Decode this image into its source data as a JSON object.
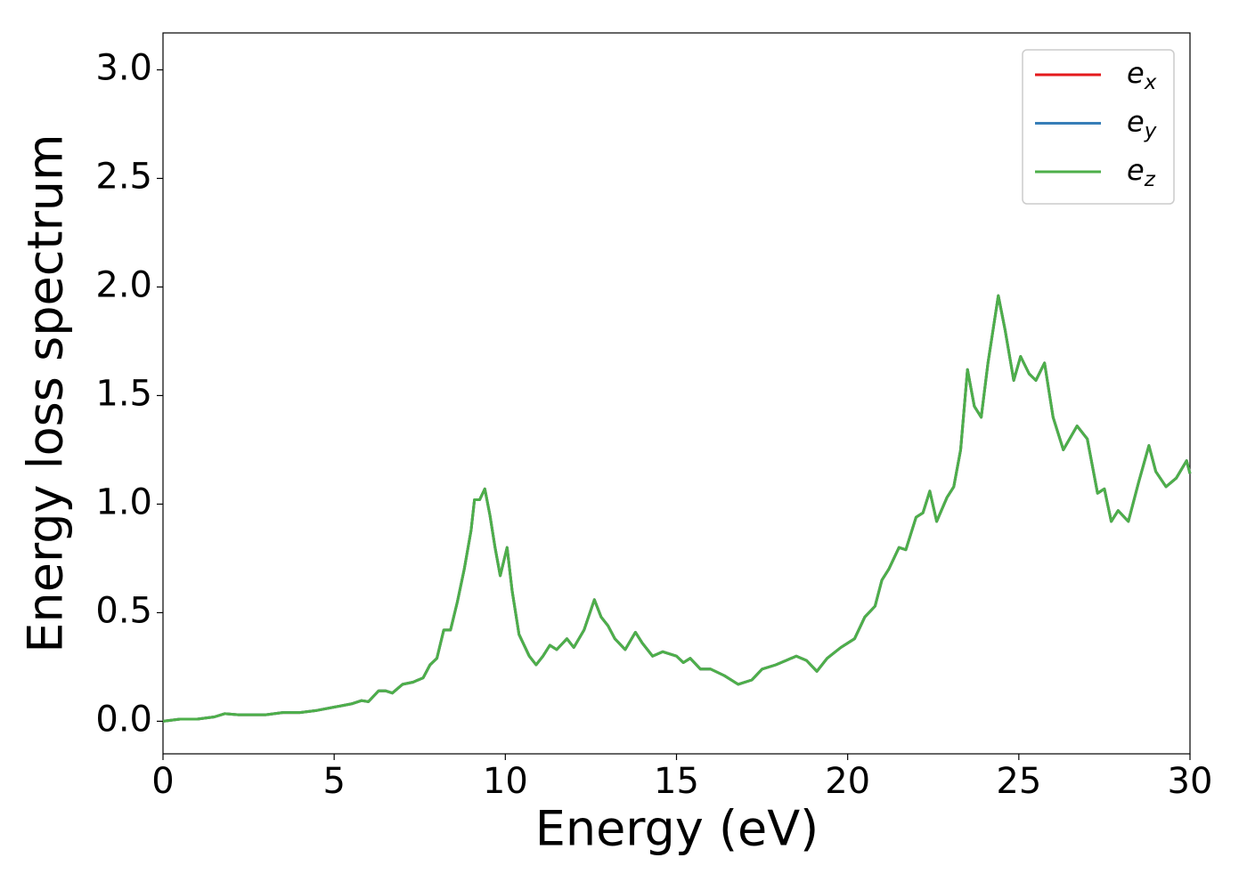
{
  "chart_data": {
    "type": "line",
    "xlabel": "Energy (eV)",
    "ylabel": "Energy loss spectrum",
    "x": [
      0,
      0.5,
      1.0,
      1.5,
      1.8,
      2.2,
      3.0,
      3.5,
      4.0,
      4.5,
      5.0,
      5.5,
      5.8,
      6.0,
      6.3,
      6.5,
      6.7,
      7.0,
      7.3,
      7.6,
      7.8,
      8.0,
      8.2,
      8.4,
      8.6,
      8.8,
      9.0,
      9.1,
      9.25,
      9.4,
      9.55,
      9.7,
      9.85,
      10.05,
      10.2,
      10.4,
      10.7,
      10.9,
      11.1,
      11.3,
      11.5,
      11.8,
      12.0,
      12.3,
      12.6,
      12.8,
      13.0,
      13.2,
      13.5,
      13.8,
      14.0,
      14.3,
      14.6,
      15.0,
      15.2,
      15.4,
      15.7,
      16.0,
      16.4,
      16.8,
      17.2,
      17.5,
      17.9,
      18.2,
      18.5,
      18.8,
      19.1,
      19.4,
      19.8,
      20.2,
      20.5,
      20.8,
      21.0,
      21.2,
      21.5,
      21.7,
      22.0,
      22.2,
      22.4,
      22.6,
      22.9,
      23.1,
      23.3,
      23.5,
      23.7,
      23.9,
      24.1,
      24.4,
      24.6,
      24.85,
      25.05,
      25.3,
      25.5,
      25.75,
      26.0,
      26.3,
      26.7,
      27.0,
      27.3,
      27.5,
      27.7,
      27.9,
      28.2,
      28.5,
      28.8,
      29.0,
      29.3,
      29.6,
      29.9,
      30.0
    ],
    "series": [
      {
        "name": "ex",
        "color": "#e41a1c",
        "values": [
          0.0,
          0.01,
          0.01,
          0.02,
          0.035,
          0.03,
          0.03,
          0.04,
          0.04,
          0.05,
          0.065,
          0.08,
          0.095,
          0.09,
          0.14,
          0.14,
          0.13,
          0.17,
          0.18,
          0.2,
          0.26,
          0.29,
          0.42,
          0.42,
          0.55,
          0.7,
          0.88,
          1.02,
          1.02,
          1.07,
          0.95,
          0.8,
          0.67,
          0.8,
          0.6,
          0.4,
          0.3,
          0.26,
          0.3,
          0.35,
          0.33,
          0.38,
          0.34,
          0.42,
          0.56,
          0.48,
          0.44,
          0.38,
          0.33,
          0.41,
          0.36,
          0.3,
          0.32,
          0.3,
          0.27,
          0.29,
          0.24,
          0.24,
          0.21,
          0.17,
          0.19,
          0.24,
          0.26,
          0.28,
          0.3,
          0.28,
          0.23,
          0.29,
          0.34,
          0.38,
          0.48,
          0.53,
          0.65,
          0.7,
          0.8,
          0.79,
          0.94,
          0.96,
          1.06,
          0.92,
          1.03,
          1.08,
          1.25,
          1.62,
          1.45,
          1.4,
          1.65,
          1.96,
          1.8,
          1.57,
          1.68,
          1.6,
          1.57,
          1.65,
          1.4,
          1.25,
          1.36,
          1.3,
          1.05,
          1.07,
          0.92,
          0.97,
          0.92,
          1.1,
          1.27,
          1.15,
          1.08,
          1.12,
          1.2,
          1.14
        ]
      },
      {
        "name": "ey",
        "color": "#377eb8",
        "values": [
          0.0,
          0.01,
          0.01,
          0.02,
          0.035,
          0.03,
          0.03,
          0.04,
          0.04,
          0.05,
          0.065,
          0.08,
          0.095,
          0.09,
          0.14,
          0.14,
          0.13,
          0.17,
          0.18,
          0.2,
          0.26,
          0.29,
          0.42,
          0.42,
          0.55,
          0.7,
          0.88,
          1.02,
          1.02,
          1.07,
          0.95,
          0.8,
          0.67,
          0.8,
          0.6,
          0.4,
          0.3,
          0.26,
          0.3,
          0.35,
          0.33,
          0.38,
          0.34,
          0.42,
          0.56,
          0.48,
          0.44,
          0.38,
          0.33,
          0.41,
          0.36,
          0.3,
          0.32,
          0.3,
          0.27,
          0.29,
          0.24,
          0.24,
          0.21,
          0.17,
          0.19,
          0.24,
          0.26,
          0.28,
          0.3,
          0.28,
          0.23,
          0.29,
          0.34,
          0.38,
          0.48,
          0.53,
          0.65,
          0.7,
          0.8,
          0.79,
          0.94,
          0.96,
          1.06,
          0.92,
          1.03,
          1.08,
          1.25,
          1.62,
          1.45,
          1.4,
          1.65,
          1.96,
          1.8,
          1.57,
          1.68,
          1.6,
          1.57,
          1.65,
          1.4,
          1.25,
          1.36,
          1.3,
          1.05,
          1.07,
          0.92,
          0.97,
          0.92,
          1.1,
          1.27,
          1.15,
          1.08,
          1.12,
          1.2,
          1.14
        ]
      },
      {
        "name": "ez",
        "color": "#4daf4a",
        "values": [
          0.0,
          0.01,
          0.01,
          0.02,
          0.035,
          0.03,
          0.03,
          0.04,
          0.04,
          0.05,
          0.065,
          0.08,
          0.095,
          0.09,
          0.14,
          0.14,
          0.13,
          0.17,
          0.18,
          0.2,
          0.26,
          0.29,
          0.42,
          0.42,
          0.55,
          0.7,
          0.88,
          1.02,
          1.02,
          1.07,
          0.95,
          0.8,
          0.67,
          0.8,
          0.6,
          0.4,
          0.3,
          0.26,
          0.3,
          0.35,
          0.33,
          0.38,
          0.34,
          0.42,
          0.56,
          0.48,
          0.44,
          0.38,
          0.33,
          0.41,
          0.36,
          0.3,
          0.32,
          0.3,
          0.27,
          0.29,
          0.24,
          0.24,
          0.21,
          0.17,
          0.19,
          0.24,
          0.26,
          0.28,
          0.3,
          0.28,
          0.23,
          0.29,
          0.34,
          0.38,
          0.48,
          0.53,
          0.65,
          0.7,
          0.8,
          0.79,
          0.94,
          0.96,
          1.06,
          0.92,
          1.03,
          1.08,
          1.25,
          1.62,
          1.45,
          1.4,
          1.65,
          1.96,
          1.8,
          1.57,
          1.68,
          1.6,
          1.57,
          1.65,
          1.4,
          1.25,
          1.36,
          1.3,
          1.05,
          1.07,
          0.92,
          0.97,
          0.92,
          1.1,
          1.27,
          1.15,
          1.08,
          1.12,
          1.2,
          1.14
        ]
      }
    ],
    "xlim": [
      0,
      30
    ],
    "xticks": [
      0,
      5,
      10,
      15,
      20,
      25,
      30
    ],
    "ylim": [
      -0.15,
      3.17
    ],
    "yticks": [
      {
        "value": 0,
        "label": "0.0"
      },
      {
        "value": 0.5,
        "label": "0.5"
      },
      {
        "value": 1,
        "label": "1.0"
      },
      {
        "value": 1.5,
        "label": "1.5"
      },
      {
        "value": 2,
        "label": "2.0"
      },
      {
        "value": 2.5,
        "label": "2.5"
      },
      {
        "value": 3,
        "label": "3.0"
      }
    ],
    "legend": "upper right",
    "grid": false
  }
}
